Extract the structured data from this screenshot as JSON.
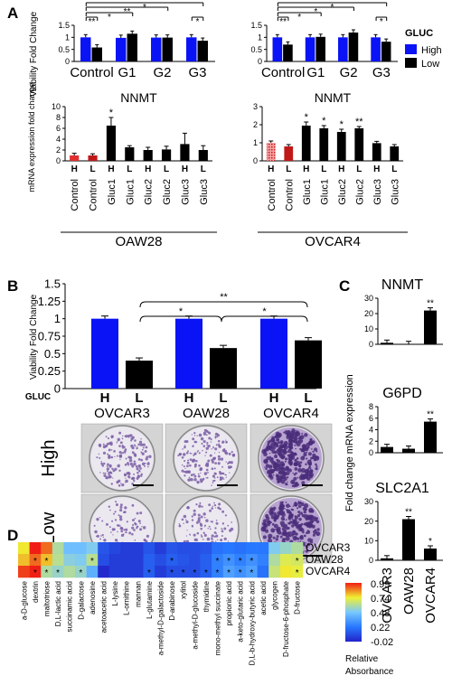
{
  "panel_letters": {
    "a": "A",
    "b": "B",
    "c": "C",
    "d": "D"
  },
  "colors": {
    "high": "#0a13f5",
    "low": "#000000",
    "control_h": "#e03030",
    "control_l": "#c01818"
  },
  "legend": {
    "title": "GLUC",
    "high": "High",
    "low": "Low"
  },
  "yaxis_viability": "Viability Fold Change",
  "yaxis_mrna": "mRNA expression fold change",
  "yaxis_fold": "Fold change mRNA expression",
  "chart_data": [
    {
      "id": "A_left_top",
      "type": "bar",
      "ylabel": "Viability Fold Change",
      "ylim": [
        0,
        1.5
      ],
      "yticks": [
        "0",
        "0.5",
        "1",
        "1.5"
      ],
      "categories": [
        "Control",
        "G1",
        "G2",
        "G3"
      ],
      "series": [
        {
          "name": "High",
          "values": [
            1.0,
            0.98,
            0.99,
            1.0
          ]
        },
        {
          "name": "Low",
          "values": [
            0.58,
            1.15,
            0.99,
            0.86
          ]
        }
      ],
      "significance": [
        "**",
        "*",
        "**",
        "*",
        "*"
      ]
    },
    {
      "id": "A_right_top",
      "type": "bar",
      "ylabel": "",
      "ylim": [
        0,
        1.5
      ],
      "yticks": [
        "0",
        "0.5",
        "1",
        "1.5"
      ],
      "categories": [
        "Control",
        "G1",
        "G2",
        "G3"
      ],
      "series": [
        {
          "name": "High",
          "values": [
            1.0,
            1.0,
            1.0,
            1.0
          ]
        },
        {
          "name": "Low",
          "values": [
            0.7,
            1.02,
            1.2,
            0.82
          ]
        }
      ],
      "significance": [
        "**",
        "*",
        "*",
        "*",
        "*"
      ]
    },
    {
      "id": "A_left_bottom",
      "type": "bar",
      "title": "NNMT",
      "ylabel": "mRNA expression fold change",
      "ylim": [
        0,
        10
      ],
      "yticks": [
        "0",
        "2",
        "4",
        "6",
        "8",
        "10"
      ],
      "categories": [
        "Control",
        "Control",
        "Gluc1",
        "Gluc1",
        "Gluc2",
        "Gluc2",
        "Gluc3",
        "Gluc3"
      ],
      "levels": [
        "H",
        "L",
        "H",
        "L",
        "H",
        "L",
        "H",
        "L"
      ],
      "values": [
        1.0,
        1.0,
        6.5,
        2.5,
        2.0,
        2.1,
        3.1,
        2.0
      ],
      "errors": [
        0.4,
        0.3,
        1.5,
        0.3,
        0.5,
        0.6,
        2.0,
        0.8
      ],
      "stars": [
        "",
        "",
        "*",
        "",
        "",
        "",
        "",
        ""
      ],
      "group_label": "OAW28"
    },
    {
      "id": "A_right_bottom",
      "type": "bar",
      "title": "NNMT",
      "ylabel": "",
      "ylim": [
        0,
        3
      ],
      "yticks": [
        "0",
        "1",
        "2",
        "3"
      ],
      "categories": [
        "Control",
        "Control",
        "Gluc1",
        "Gluc1",
        "Gluc2",
        "Gluc2",
        "Gluc3",
        "Gluc3"
      ],
      "levels": [
        "H",
        "L",
        "H",
        "L",
        "H",
        "L",
        "H",
        "L"
      ],
      "values": [
        1.0,
        0.8,
        1.95,
        1.8,
        1.6,
        1.8,
        0.98,
        0.8
      ],
      "errors": [
        0.1,
        0.1,
        0.2,
        0.15,
        0.15,
        0.1,
        0.1,
        0.1
      ],
      "stars": [
        "",
        "",
        "*",
        "*",
        "*",
        "**",
        "",
        ""
      ],
      "group_label": "OVCAR4"
    },
    {
      "id": "B",
      "type": "bar",
      "ylabel": "Viability Fold Change",
      "ylim": [
        0,
        1.5
      ],
      "yticks": [
        "0",
        "0.25",
        "0.5",
        "0.75",
        "1",
        "1.25",
        "1.5"
      ],
      "xlabel": "GLUC",
      "categories": [
        "OVCAR3",
        "OAW28",
        "OVCAR4"
      ],
      "series": [
        {
          "name": "H",
          "values": [
            1.0,
            1.0,
            1.0
          ]
        },
        {
          "name": "L",
          "values": [
            0.4,
            0.58,
            0.69
          ]
        }
      ],
      "significance": [
        "*",
        "**",
        "*"
      ]
    },
    {
      "id": "C_NNMT",
      "type": "bar",
      "title": "NNMT",
      "ylim": [
        0,
        30
      ],
      "yticks": [
        "0",
        "10",
        "20",
        "30"
      ],
      "categories": [
        "OVCAR3",
        "OAW28",
        "OVCAR4"
      ],
      "values": [
        1,
        0.2,
        22
      ],
      "stars": [
        "",
        "",
        "**"
      ]
    },
    {
      "id": "C_G6PD",
      "type": "bar",
      "title": "G6PD",
      "ylim": [
        0,
        8
      ],
      "yticks": [
        "0",
        "2",
        "4",
        "6",
        "8"
      ],
      "categories": [
        "OVCAR3",
        "OAW28",
        "OVCAR4"
      ],
      "values": [
        1,
        0.7,
        5.4
      ],
      "stars": [
        "",
        "",
        "**"
      ]
    },
    {
      "id": "C_SLC2A1",
      "type": "bar",
      "title": "SLC2A1",
      "ylim": [
        0,
        30
      ],
      "yticks": [
        "0",
        "10",
        "20",
        "30"
      ],
      "categories": [
        "OVCAR3",
        "OAW28",
        "OVCAR4"
      ],
      "values": [
        1,
        21,
        6
      ],
      "stars": [
        "",
        "**",
        "*"
      ]
    },
    {
      "id": "D",
      "type": "heatmap",
      "rows": [
        "OVCAR3",
        "OAW28",
        "OVCAR4"
      ],
      "columns": [
        "a-D-glucose",
        "dextrin",
        "maltotriose",
        "D,L-lactic acid",
        "succinamic acid",
        "D-galactose",
        "adenosine",
        "acetoacetic acid",
        "L-lysine",
        "L-ornithine",
        "mannan",
        "L-glutamine",
        "a-methyl-D-galactoside",
        "D-arabinose",
        "xylitol",
        "a-methyl-D-glucoside",
        "thymidine",
        "mono-methyl succinate",
        "propionic acid",
        "a-keto-glutaric acid",
        "D,L-b-hydroxy-butyric acid",
        "acetic acid",
        "glycogen",
        "D-fructose-6-phosphate",
        "D-fructose"
      ],
      "values": [
        [
          0.75,
          0.99,
          0.9,
          0.6,
          0.45,
          0.45,
          0.5,
          0.12,
          0.08,
          0.05,
          0.05,
          0.12,
          0.05,
          0.12,
          0.1,
          0.1,
          0.12,
          0.2,
          0.22,
          0.2,
          0.22,
          0.22,
          0.5,
          0.55,
          0.6
        ],
        [
          0.8,
          0.9,
          0.8,
          0.62,
          0.52,
          0.5,
          0.62,
          0.1,
          0.05,
          0.05,
          0.05,
          0.15,
          0.1,
          0.15,
          0.12,
          0.1,
          0.15,
          0.25,
          0.3,
          0.25,
          0.3,
          0.25,
          0.6,
          0.7,
          0.68
        ],
        [
          0.95,
          0.99,
          0.6,
          0.55,
          0.6,
          0.55,
          0.4,
          0.0,
          0.05,
          0.05,
          0.05,
          0.15,
          0.05,
          0.1,
          0.1,
          0.1,
          0.15,
          0.25,
          0.35,
          0.3,
          0.35,
          0.2,
          0.65,
          0.75,
          0.72
        ]
      ],
      "stars_oaw28": [
        1,
        2,
        6,
        13,
        17,
        18,
        19,
        20,
        24
      ],
      "stars_ovcar4": [
        1,
        2,
        3,
        5,
        11,
        13,
        14,
        15,
        16,
        17,
        18,
        19,
        20,
        24
      ],
      "legend_ticks": [
        "0.99",
        "0.74",
        "0.48",
        "0.22",
        "-0.02"
      ],
      "legend_label": "Relative Absorbance"
    }
  ],
  "photo_rows": [
    "High",
    "Low"
  ]
}
